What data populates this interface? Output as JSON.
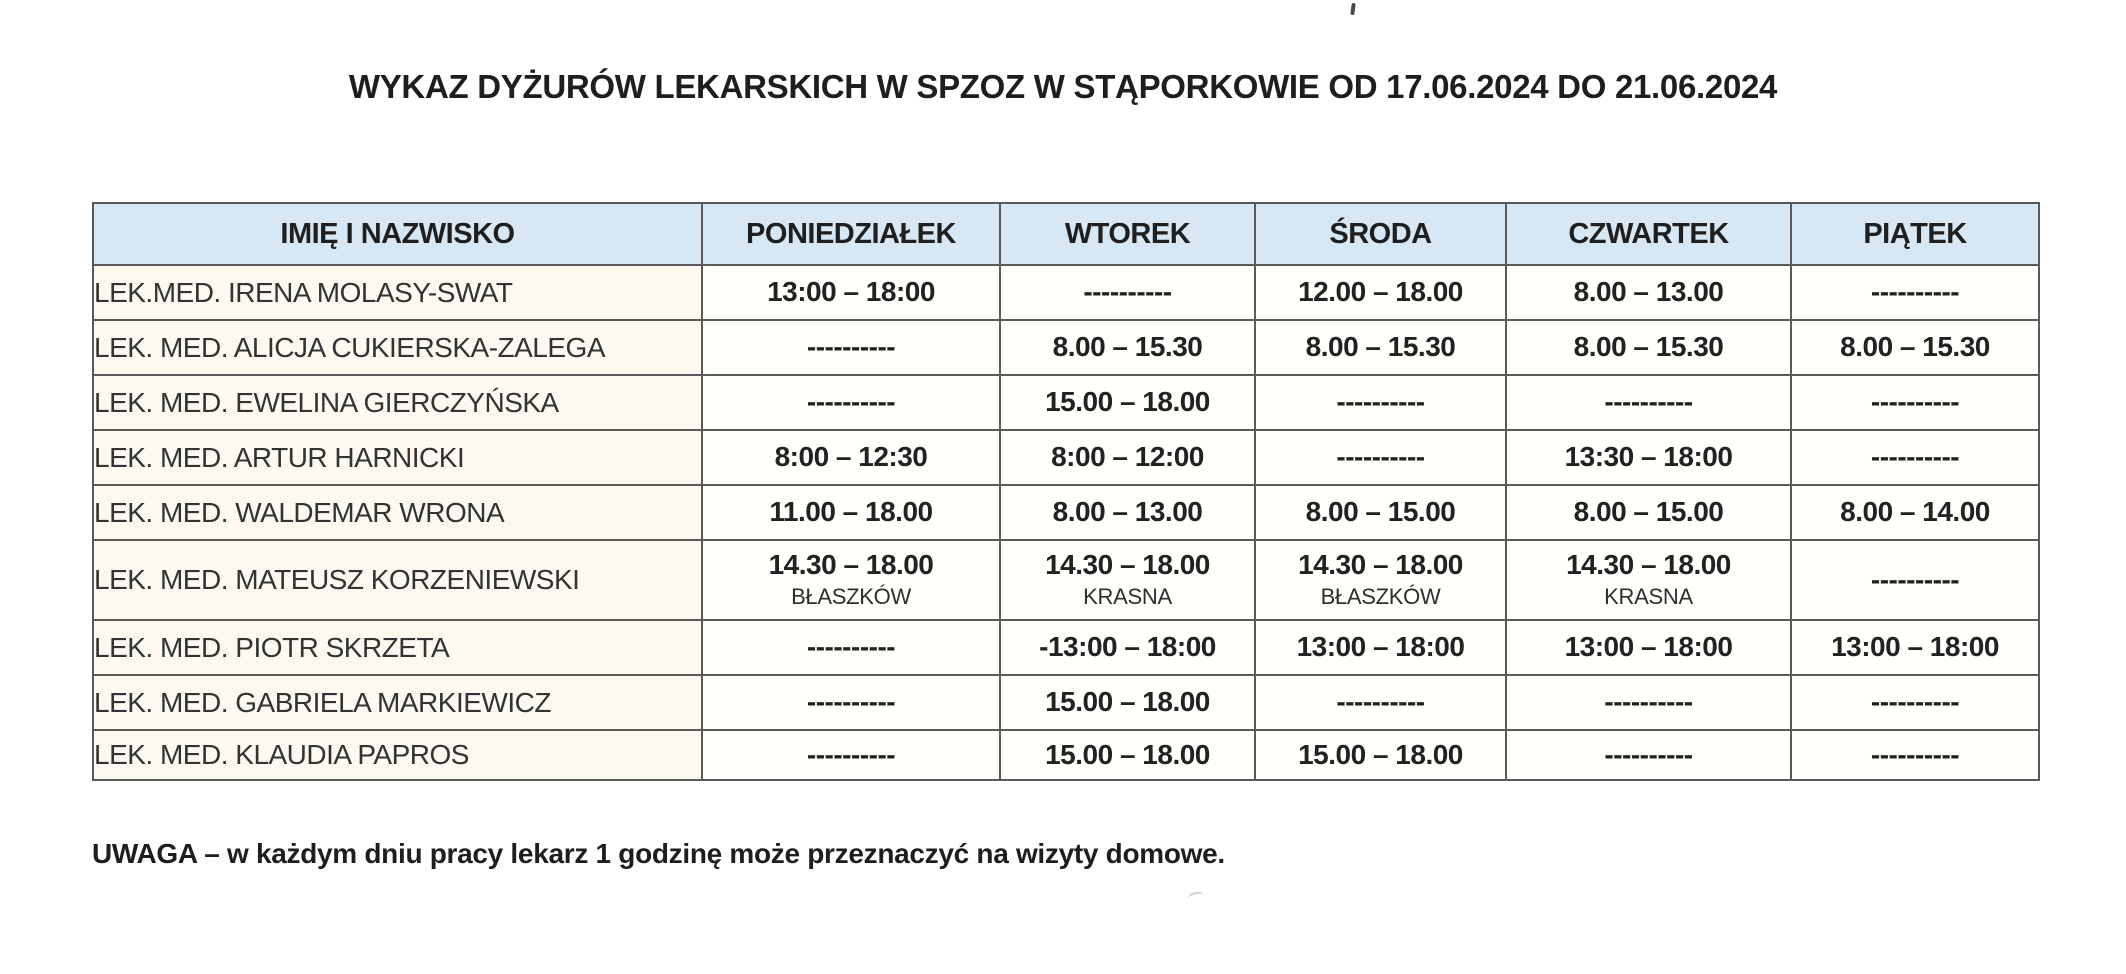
{
  "page": {
    "title": "WYKAZ DYŻURÓW LEKARSKICH W SPZOZ W STĄPORKOWIE OD 17.06.2024 DO 21.06.2024",
    "note": "UWAGA – w każdym dniu pracy lekarz 1 godzinę może przeznaczyć na wizyty domowe."
  },
  "colors": {
    "header_bg": "#d7e8f4",
    "name_col_bg": "#fbf9f0",
    "cell_bg": "#fffffc",
    "border": "#5a5a5a"
  },
  "table": {
    "headers": [
      "IMIĘ I NAZWISKO",
      "PONIEDZIAŁEK",
      "WTOREK",
      "ŚRODA",
      "CZWARTEK",
      "PIĄTEK"
    ],
    "rows": [
      {
        "name": "LEK.MED. IRENA MOLASY-SWAT",
        "cells": [
          {
            "time": "13:00 – 18:00"
          },
          {
            "time": "----------"
          },
          {
            "time": "12.00 – 18.00"
          },
          {
            "time": "8.00 – 13.00"
          },
          {
            "time": "----------"
          }
        ]
      },
      {
        "name": "LEK. MED. ALICJA CUKIERSKA-ZALEGA",
        "cells": [
          {
            "time": "----------"
          },
          {
            "time": "8.00 – 15.30"
          },
          {
            "time": "8.00 – 15.30"
          },
          {
            "time": "8.00 – 15.30"
          },
          {
            "time": "8.00 – 15.30"
          }
        ]
      },
      {
        "name": "LEK. MED. EWELINA GIERCZYŃSKA",
        "cells": [
          {
            "time": "----------"
          },
          {
            "time": "15.00 – 18.00"
          },
          {
            "time": "----------"
          },
          {
            "time": "----------"
          },
          {
            "time": "----------"
          }
        ]
      },
      {
        "name": "LEK. MED. ARTUR HARNICKI",
        "cells": [
          {
            "time": "8:00 – 12:30"
          },
          {
            "time": "8:00 – 12:00"
          },
          {
            "time": "----------"
          },
          {
            "time": "13:30 – 18:00"
          },
          {
            "time": "----------"
          }
        ]
      },
      {
        "name": "LEK. MED. WALDEMAR WRONA",
        "cells": [
          {
            "time": "11.00 – 18.00"
          },
          {
            "time": "8.00 – 13.00"
          },
          {
            "time": "8.00 – 15.00"
          },
          {
            "time": "8.00 – 15.00"
          },
          {
            "time": "8.00 – 14.00"
          }
        ]
      },
      {
        "name": "LEK. MED. MATEUSZ KORZENIEWSKI",
        "cells": [
          {
            "time": "14.30 – 18.00",
            "place": "BŁASZKÓW"
          },
          {
            "time": "14.30 – 18.00",
            "place": "KRASNA"
          },
          {
            "time": "14.30 – 18.00",
            "place": "BŁASZKÓW"
          },
          {
            "time": "14.30 – 18.00",
            "place": "KRASNA"
          },
          {
            "time": "----------"
          }
        ]
      },
      {
        "name": "LEK. MED. PIOTR SKRZETA",
        "cells": [
          {
            "time": "----------"
          },
          {
            "time": "-13:00 – 18:00"
          },
          {
            "time": "13:00 – 18:00"
          },
          {
            "time": "13:00 – 18:00"
          },
          {
            "time": "13:00 – 18:00"
          }
        ]
      },
      {
        "name": "LEK. MED. GABRIELA MARKIEWICZ",
        "cells": [
          {
            "time": "----------"
          },
          {
            "time": "15.00 – 18.00"
          },
          {
            "time": "----------"
          },
          {
            "time": "----------"
          },
          {
            "time": "----------"
          }
        ]
      },
      {
        "name": "LEK. MED. KLAUDIA PAPROS",
        "cells": [
          {
            "time": "----------"
          },
          {
            "time": "15.00 – 18.00"
          },
          {
            "time": "15.00 – 18.00"
          },
          {
            "time": "----------"
          },
          {
            "time": "----------"
          }
        ]
      }
    ]
  }
}
